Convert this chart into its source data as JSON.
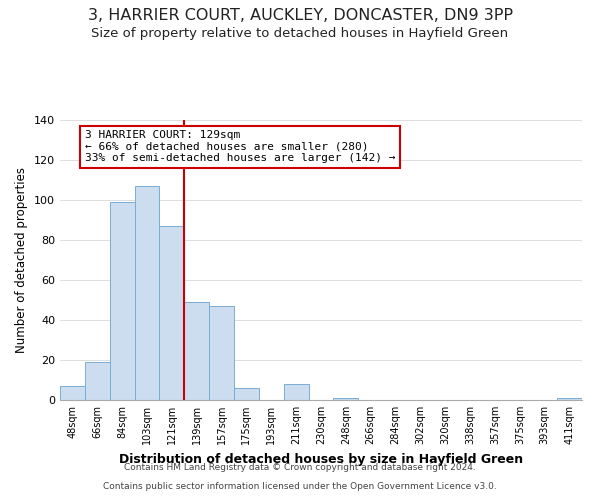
{
  "title": "3, HARRIER COURT, AUCKLEY, DONCASTER, DN9 3PP",
  "subtitle": "Size of property relative to detached houses in Hayfield Green",
  "xlabel": "Distribution of detached houses by size in Hayfield Green",
  "ylabel": "Number of detached properties",
  "bar_labels": [
    "48sqm",
    "66sqm",
    "84sqm",
    "103sqm",
    "121sqm",
    "139sqm",
    "157sqm",
    "175sqm",
    "193sqm",
    "211sqm",
    "230sqm",
    "248sqm",
    "266sqm",
    "284sqm",
    "302sqm",
    "320sqm",
    "338sqm",
    "357sqm",
    "375sqm",
    "393sqm",
    "411sqm"
  ],
  "bar_heights": [
    7,
    19,
    99,
    107,
    87,
    49,
    47,
    6,
    0,
    8,
    0,
    1,
    0,
    0,
    0,
    0,
    0,
    0,
    0,
    0,
    1
  ],
  "bar_color": "#ccddf0",
  "bar_edge_color": "#7aadd4",
  "vline_color": "#cc0000",
  "ylim": [
    0,
    140
  ],
  "yticks": [
    0,
    20,
    40,
    60,
    80,
    100,
    120,
    140
  ],
  "annotation_title": "3 HARRIER COURT: 129sqm",
  "annotation_line1": "← 66% of detached houses are smaller (280)",
  "annotation_line2": "33% of semi-detached houses are larger (142) →",
  "footer1": "Contains HM Land Registry data © Crown copyright and database right 2024.",
  "footer2": "Contains public sector information licensed under the Open Government Licence v3.0.",
  "background_color": "#ffffff",
  "title_fontsize": 11.5,
  "subtitle_fontsize": 9.5
}
